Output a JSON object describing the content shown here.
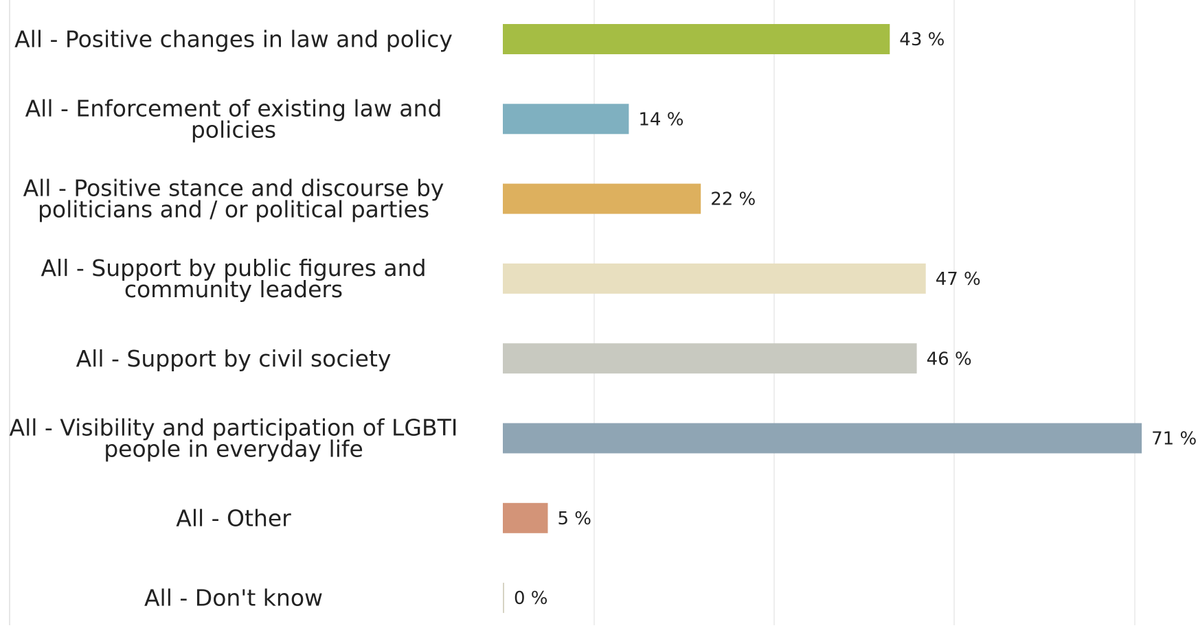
{
  "chart_data": {
    "type": "bar",
    "orientation": "horizontal",
    "title": "",
    "xlabel": "",
    "ylabel": "",
    "xlim": [
      0,
      70
    ],
    "value_suffix": " %",
    "grid": true,
    "categories": [
      "All - Positive changes in law and policy",
      "All - Enforcement of existing law and policies",
      "All - Positive stance and discourse by politicians and / or political parties",
      "All - Support by public figures and community leaders",
      "All - Support by civil society",
      "All - Visibility and participation of LGBTI people in everyday life",
      "All - Other",
      "All - Don't know"
    ],
    "category_label_lines": [
      [
        "All - Positive changes in law and policy"
      ],
      [
        "All - Enforcement of existing law and",
        "policies"
      ],
      [
        "All - Positive stance and discourse by",
        "politicians and / or political parties"
      ],
      [
        "All - Support by public figures and",
        "community leaders"
      ],
      [
        "All - Support by civil society"
      ],
      [
        "All - Visibility and participation of LGBTI",
        "people in everyday life"
      ],
      [
        "All - Other"
      ],
      [
        "All - Don't know"
      ]
    ],
    "values": [
      43,
      14,
      22,
      47,
      46,
      71,
      5,
      0
    ],
    "value_labels": [
      "43 %",
      "14 %",
      "22 %",
      "47 %",
      "46 %",
      "71 %",
      "5 %",
      "0 %"
    ],
    "colors": [
      "#a5bd44",
      "#7fb0c0",
      "#ddb05e",
      "#e8dfbf",
      "#c8c9c0",
      "#8fa5b4",
      "#d39478",
      "#d6d3c3"
    ]
  }
}
